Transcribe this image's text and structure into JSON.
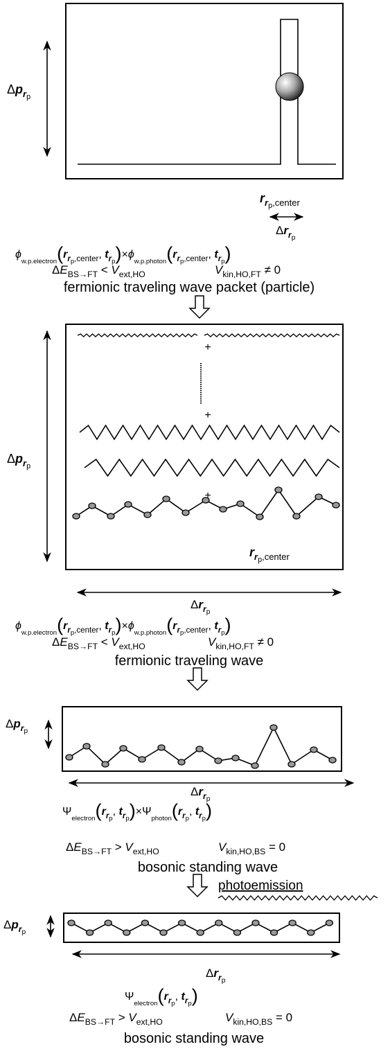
{
  "panel1": {
    "momentum_spread": [
      "Δ",
      "p",
      "r",
      "p"
    ],
    "position": [
      "r",
      "r",
      "p",
      ",center"
    ],
    "position_spread": [
      "Δ",
      "r",
      "r",
      "p"
    ],
    "wavefunction": [
      "ϕ",
      "w.p.electron",
      "(",
      "r",
      "r",
      "p",
      ",center",
      ", ",
      "t",
      "r",
      "p",
      ")",
      "×",
      "ϕ",
      "w.p.photon",
      "(",
      "r",
      "r",
      "p",
      ",center",
      ", ",
      "t",
      "r",
      "p",
      ")"
    ],
    "condition": [
      "Δ",
      "E",
      "BS→FT",
      " < ",
      "V",
      "ext,HO"
    ],
    "kinetic": [
      "V",
      "kin,HO,FT",
      " ≠ 0"
    ],
    "caption": "fermionic traveling wave packet (particle)"
  },
  "panel2": {
    "momentum_spread": [
      "Δ",
      "p",
      "r",
      "p"
    ],
    "plus_signs": [
      "+",
      "+",
      "+"
    ],
    "position": [
      "r",
      "r",
      "p",
      ",center"
    ],
    "position_spread": [
      "Δ",
      "r",
      "r",
      "p"
    ],
    "wavefunction": [
      "ϕ",
      "w.p.electron",
      "(",
      "r",
      "r",
      "p",
      ",center",
      ", ",
      "t",
      "r",
      "p",
      ")",
      "×",
      "ϕ",
      "w.p.photon",
      "(",
      "r",
      "r",
      "p",
      ",center",
      ", ",
      "t",
      "r",
      "p",
      ")"
    ],
    "condition": [
      "Δ",
      "E",
      "BS→FT",
      " < ",
      "V",
      "ext,HO"
    ],
    "kinetic": [
      "V",
      "kin,HO,FT",
      " ≠ 0"
    ],
    "caption": "fermionic traveling wave"
  },
  "panel3": {
    "momentum_spread": [
      "Δ",
      "p",
      "r",
      "p"
    ],
    "position_spread": [
      "Δ",
      "r",
      "r",
      "p"
    ],
    "wavefunction": [
      "Ψ",
      "electron",
      "(",
      "r",
      "r",
      "p",
      ", ",
      "t",
      "r",
      "p",
      ")",
      "×",
      "Ψ",
      "photon",
      "(",
      "r",
      "r",
      "p",
      ", ",
      "t",
      "r",
      "p",
      ")"
    ],
    "condition": [
      "Δ",
      "E",
      "BS→FT",
      " > ",
      "V",
      "ext,HO"
    ],
    "kinetic": [
      "V",
      "kin,HO,BS",
      " = 0"
    ],
    "caption": "bosonic standing wave",
    "emission": "photoemission"
  },
  "panel4": {
    "momentum_spread": [
      "Δ",
      "p",
      "r",
      "p"
    ],
    "position_spread": [
      "Δ",
      "r",
      "r",
      "p"
    ],
    "wavefunction": [
      "Ψ",
      "electron",
      "(",
      "r",
      "r",
      "p",
      ", ",
      "t",
      "r",
      "p",
      ")"
    ],
    "condition": [
      "Δ",
      "E",
      "BS→FT",
      " > ",
      "V",
      "ext,HO"
    ],
    "kinetic": [
      "V",
      "kin,HO,BS",
      " = 0"
    ],
    "caption": "bosonic standing wave"
  }
}
